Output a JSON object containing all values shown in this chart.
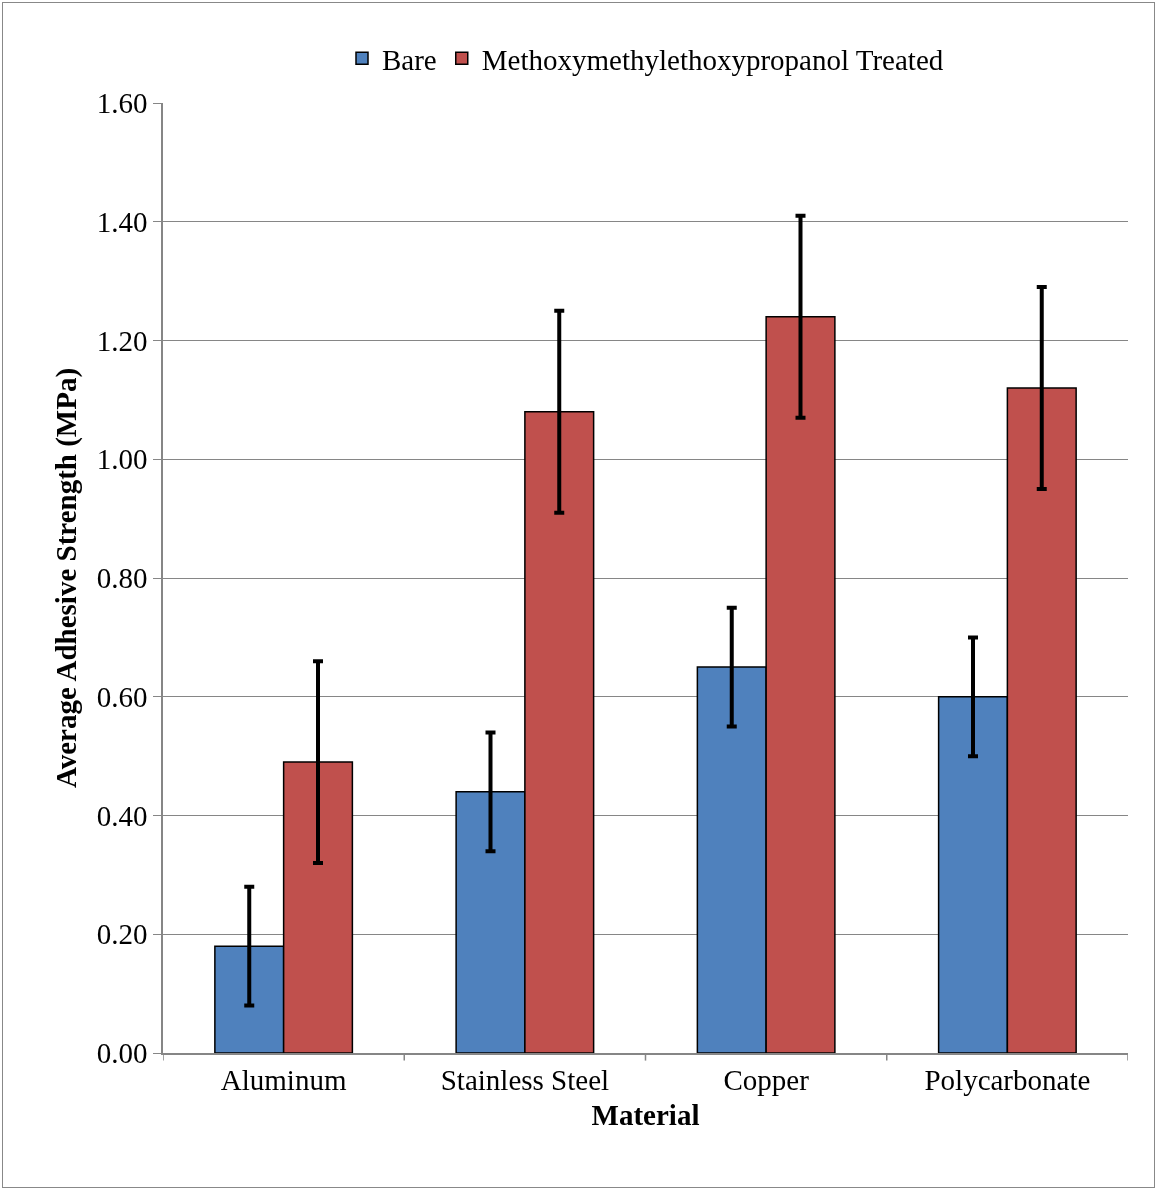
{
  "chart_data": {
    "type": "bar",
    "xlabel": "Material",
    "ylabel": "Average Adhesive Strength (MPa)",
    "categories": [
      "Aluminum",
      "Stainless Steel",
      "Copper",
      "Polycarbonate"
    ],
    "series": [
      {
        "name": "Bare",
        "color": "#4f81bd",
        "values": [
          0.18,
          0.44,
          0.65,
          0.6
        ],
        "errors": [
          0.1,
          0.1,
          0.1,
          0.1
        ]
      },
      {
        "name": "Methoxymethylethoxypropanol Treated",
        "color": "#c0504d",
        "values": [
          0.49,
          1.08,
          1.24,
          1.12
        ],
        "errors": [
          0.17,
          0.17,
          0.17,
          0.17
        ]
      }
    ],
    "ylim": [
      0,
      1.6
    ],
    "yticks": [
      {
        "value": 0,
        "label": "0.00"
      },
      {
        "value": 0.2,
        "label": "0.20"
      },
      {
        "value": 0.4,
        "label": "0.40"
      },
      {
        "value": 0.6,
        "label": "0.60"
      },
      {
        "value": 0.8,
        "label": "0.80"
      },
      {
        "value": 1,
        "label": "1.00"
      },
      {
        "value": 1.2,
        "label": "1.20"
      },
      {
        "value": 1.4,
        "label": "1.40"
      },
      {
        "value": 1.6,
        "label": "1.60"
      }
    ],
    "grid": "y",
    "legend": "top"
  }
}
